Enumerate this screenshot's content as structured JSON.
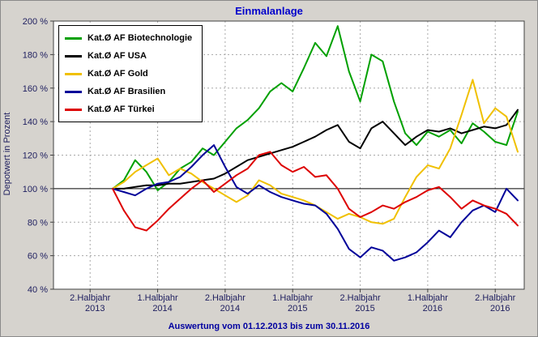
{
  "header": {
    "title": "Einmalanlage"
  },
  "footer": {
    "text": "Auswertung vom 01.12.2013 bis zum 30.11.2016"
  },
  "colors": {
    "background": "#d6d3ce",
    "plot_background": "#ffffff",
    "title": "#0000CC",
    "footer": "#0000A0",
    "axis_text": "#202060",
    "gridline": "#a8a8a8",
    "plot_border": "#404040",
    "reference_line": "#000000"
  },
  "y_axis": {
    "label": "Depotwert in Prozent",
    "tick_labels": [
      "200 %",
      "180 %",
      "160 %",
      "140 %",
      "120 %",
      "100 %",
      "80 %",
      "60 %",
      "40 %"
    ]
  },
  "x_axis": {
    "ticks": [
      {
        "period": "2.Halbjahr",
        "year": "2013"
      },
      {
        "period": "1.Halbjahr",
        "year": "2014"
      },
      {
        "period": "2.Halbjahr",
        "year": "2014"
      },
      {
        "period": "1.Halbjahr",
        "year": "2015"
      },
      {
        "period": "2.Halbjahr",
        "year": "2015"
      },
      {
        "period": "1.Halbjahr",
        "year": "2016"
      },
      {
        "period": "2.Halbjahr",
        "year": "2016"
      }
    ]
  },
  "chart_data": {
    "type": "line",
    "title": "Einmalanlage",
    "xlabel": "",
    "ylabel": "Depotwert in Prozent",
    "ylim": [
      40,
      200
    ],
    "y_step": 20,
    "reference_line": 100,
    "grid": "dashed",
    "legend_position": "top-left",
    "x_unit": "monthly values, month 0 = 01.12.2013, month 36 = 30.11.2016, start value 100 %",
    "x_tick_labels": [
      "2.Halbjahr 2013",
      "1.Halbjahr 2014",
      "2.Halbjahr 2014",
      "1.Halbjahr 2015",
      "2.Halbjahr 2015",
      "1.Halbjahr 2016",
      "2.Halbjahr 2016"
    ],
    "x_tick_month_offsets": [
      -2,
      4,
      10,
      16,
      22,
      28,
      34
    ],
    "series": [
      {
        "name": "Kat.Ø AF Biotechnologie",
        "color": "#00A000",
        "values": [
          100,
          105,
          117,
          110,
          99,
          104,
          112,
          116,
          124,
          120,
          128,
          136,
          141,
          148,
          158,
          163,
          158,
          172,
          187,
          179,
          197,
          170,
          152,
          180,
          176,
          152,
          133,
          126,
          134,
          131,
          135,
          127,
          139,
          134,
          128,
          126,
          146
        ]
      },
      {
        "name": "Kat.Ø AF USA",
        "color": "#000000",
        "values": [
          100,
          100,
          101,
          102,
          102,
          103,
          103,
          104,
          105,
          106,
          109,
          113,
          117,
          119,
          121,
          123,
          125,
          128,
          131,
          135,
          138,
          128,
          124,
          136,
          140,
          133,
          126,
          131,
          135,
          134,
          136,
          133,
          135,
          137,
          136,
          138,
          147
        ]
      },
      {
        "name": "Kat.Ø AF Gold",
        "color": "#F0C000",
        "values": [
          100,
          104,
          110,
          114,
          118,
          108,
          112,
          109,
          104,
          100,
          96,
          92,
          96,
          105,
          102,
          97,
          95,
          93,
          90,
          86,
          82,
          85,
          83,
          80,
          79,
          82,
          95,
          107,
          114,
          112,
          124,
          144,
          165,
          139,
          148,
          143,
          122
        ]
      },
      {
        "name": "Kat.Ø AF Brasilien",
        "color": "#000099",
        "values": [
          100,
          98,
          96,
          100,
          103,
          104,
          107,
          113,
          120,
          126,
          113,
          101,
          97,
          102,
          98,
          95,
          93,
          91,
          90,
          85,
          76,
          64,
          59,
          65,
          63,
          57,
          59,
          62,
          68,
          75,
          71,
          80,
          87,
          90,
          86,
          100,
          93
        ]
      },
      {
        "name": "Kat.Ø AF Türkei",
        "color": "#DD0000",
        "values": [
          100,
          87,
          77,
          75,
          81,
          88,
          94,
          100,
          105,
          98,
          103,
          108,
          112,
          120,
          122,
          114,
          110,
          113,
          107,
          108,
          100,
          88,
          83,
          86,
          90,
          88,
          92,
          95,
          99,
          101,
          95,
          88,
          93,
          90,
          88,
          85,
          78
        ]
      }
    ]
  }
}
